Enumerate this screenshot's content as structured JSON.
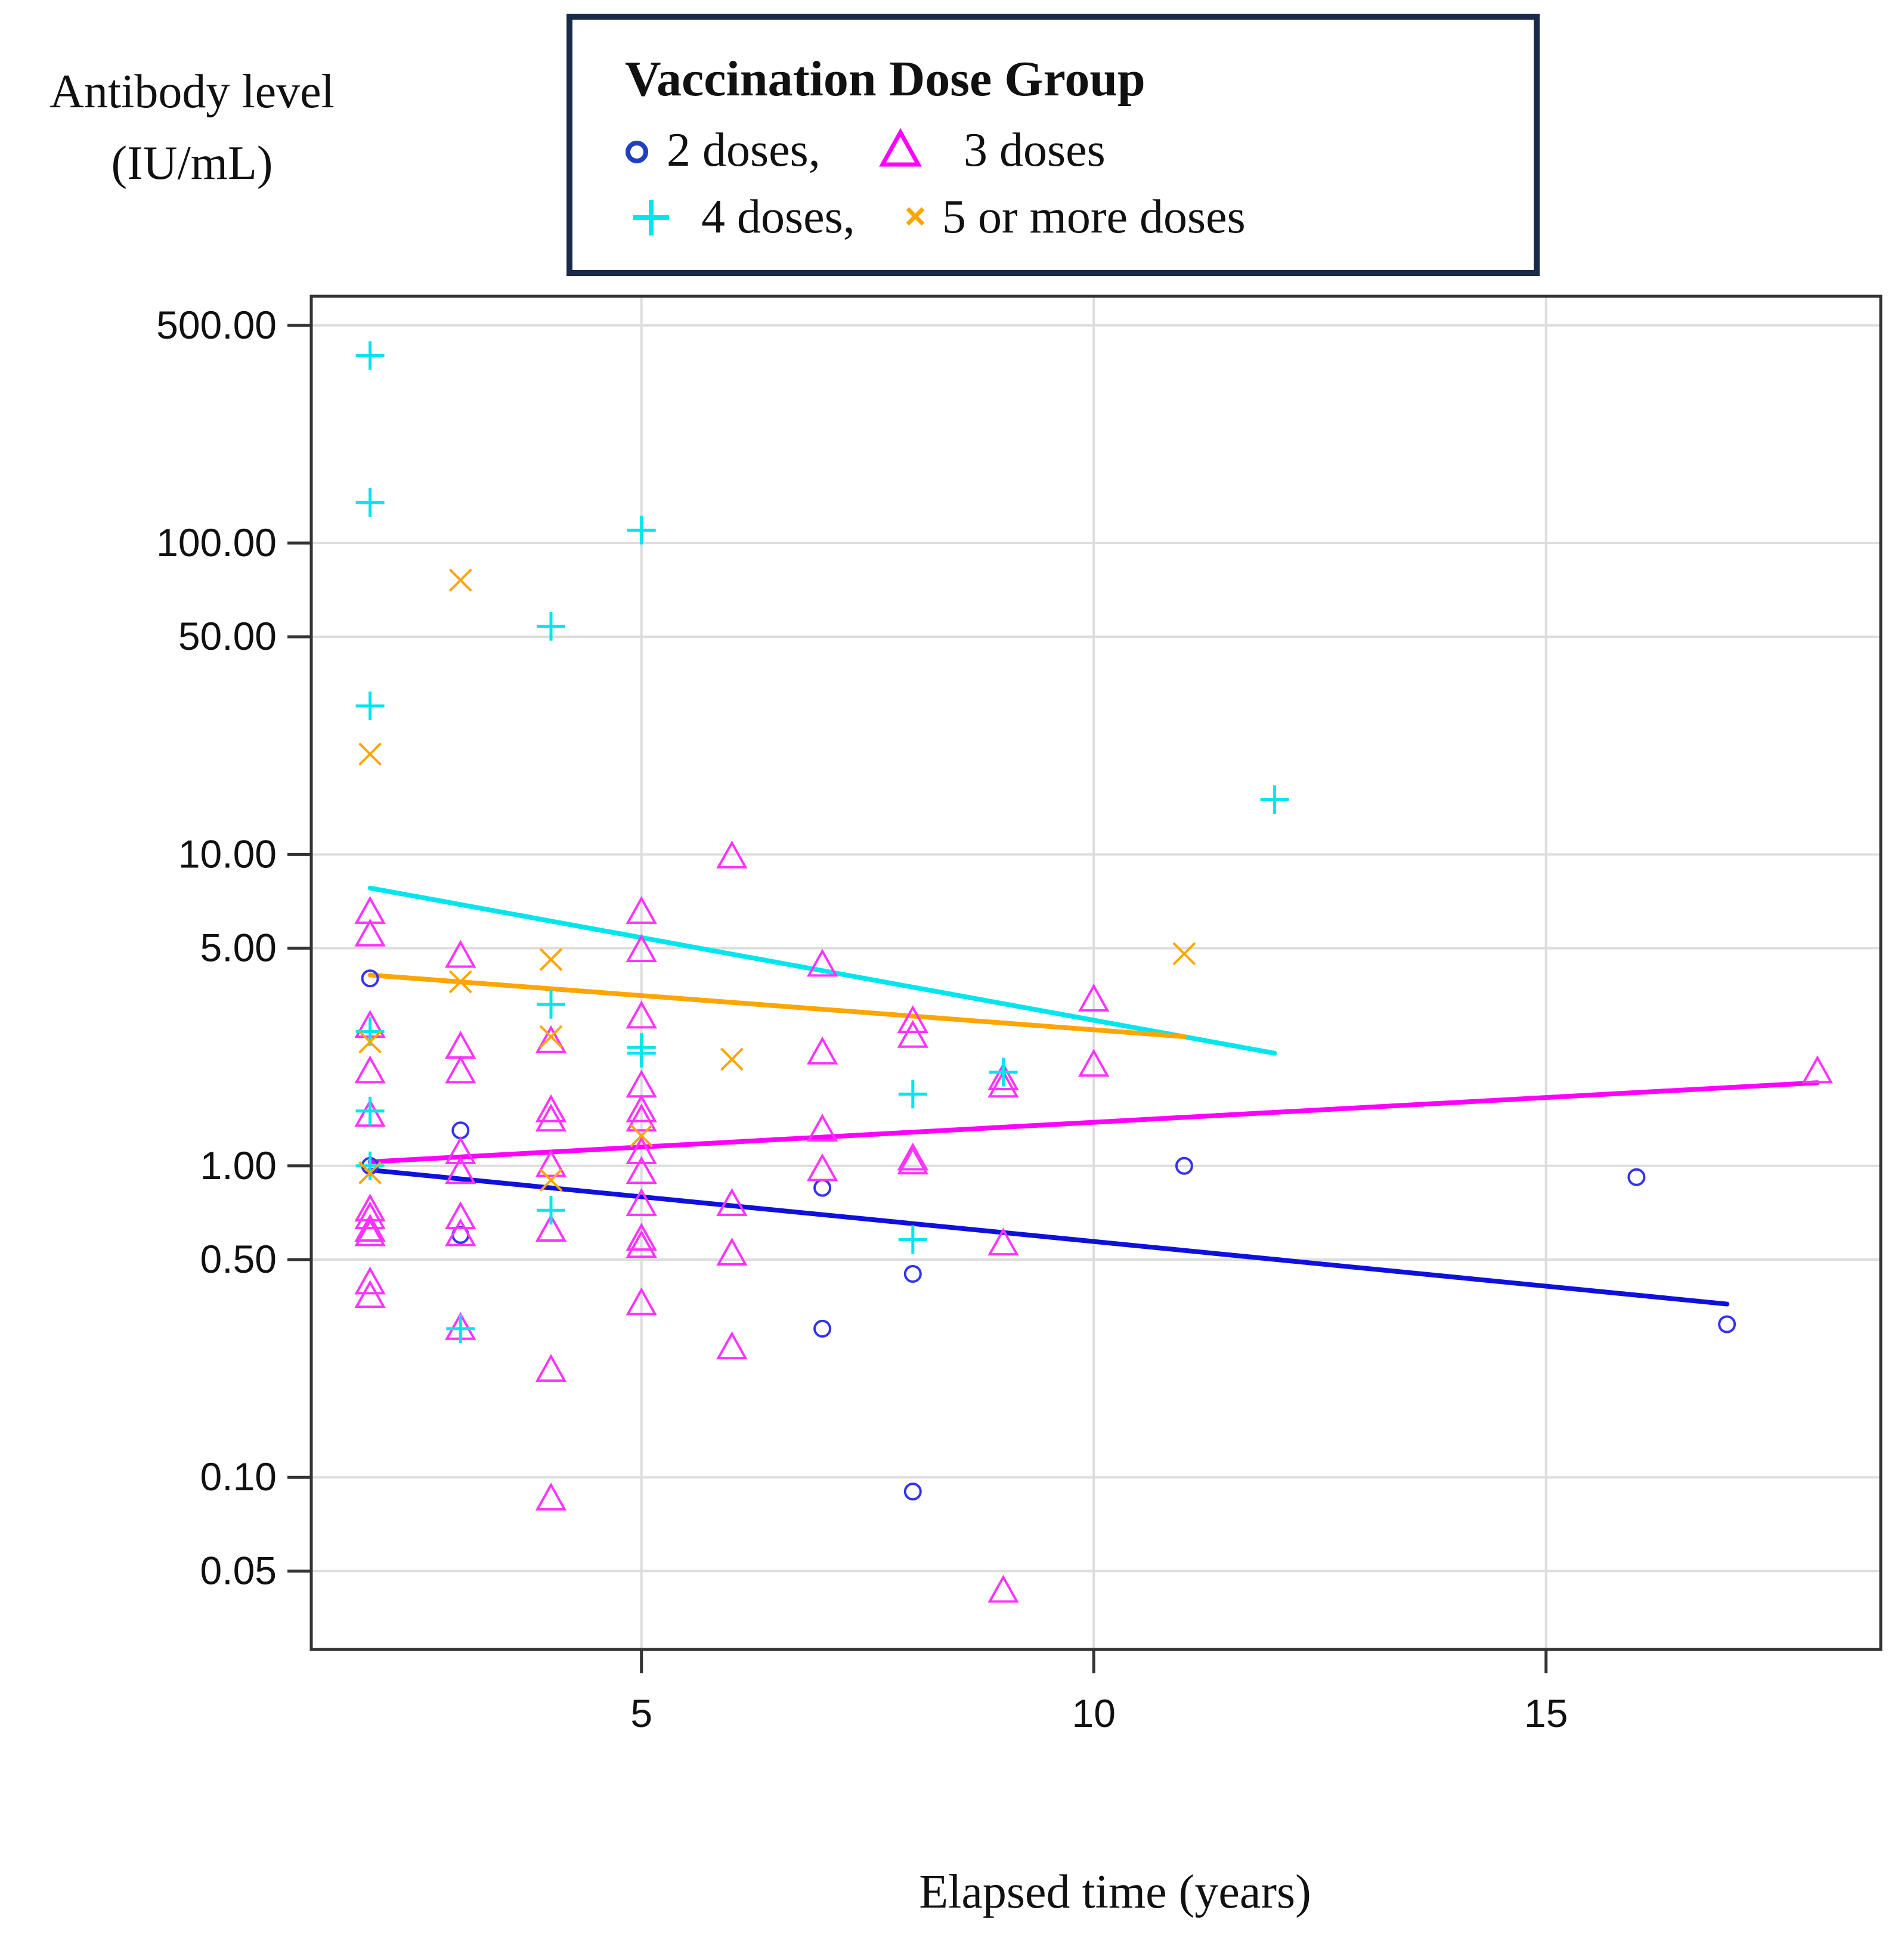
{
  "chart_data": {
    "type": "scatter",
    "title": "",
    "ylabel_line1": "Antibody level",
    "ylabel_line2": "(IU/mL)",
    "xlabel": "Elapsed time (years)",
    "y_scale": "log",
    "xlim": [
      1.35,
      18.7
    ],
    "ylim": [
      0.028,
      620
    ],
    "x_ticks": [
      5,
      10,
      15
    ],
    "x_tick_labels": [
      "5",
      "10",
      "15"
    ],
    "y_ticks": [
      500,
      100,
      50,
      10,
      5,
      1,
      0.5,
      0.1,
      0.05
    ],
    "y_tick_labels": [
      "500.00",
      "100.00",
      "50.00",
      "10.00",
      "5.00",
      "1.00",
      "0.50",
      "0.10",
      "0.05"
    ],
    "grid": true,
    "legend": {
      "title": "Vaccination Dose Group",
      "placement": "top-center",
      "entries": [
        {
          "label": "2 doses,",
          "marker": "circle",
          "color": "#1f3fbf"
        },
        {
          "label": "3 doses",
          "marker": "triangle",
          "color": "#ff00ff"
        },
        {
          "label": "4 doses,",
          "marker": "plus",
          "color": "#00e5ee"
        },
        {
          "label": "5 or more doses",
          "marker": "x",
          "color": "#ffa500"
        }
      ]
    },
    "series": [
      {
        "name": "2 doses",
        "marker": "circle",
        "color": "#3333ee",
        "line_color": "#1010dd",
        "x": [
          2,
          2,
          3,
          3,
          7,
          7,
          8,
          8,
          11,
          16,
          17
        ],
        "y": [
          4.0,
          1.0,
          1.3,
          0.6,
          0.85,
          0.3,
          0.45,
          0.09,
          1.0,
          0.92,
          0.31
        ],
        "trend": {
          "x": [
            2,
            17
          ],
          "y": [
            0.97,
            0.36
          ]
        }
      },
      {
        "name": "3 doses",
        "marker": "triangle",
        "color": "#ff33ff",
        "line_color": "#ff00ff",
        "x": [
          2,
          2,
          2,
          2,
          2,
          2,
          2,
          2,
          2,
          2,
          2,
          3,
          3,
          3,
          3,
          3,
          3,
          3,
          3,
          4,
          4,
          4,
          4,
          4,
          4,
          4,
          5,
          5,
          5,
          5,
          5,
          5,
          5,
          5,
          5,
          5,
          5,
          5,
          6,
          6,
          6,
          6,
          7,
          7,
          7,
          7,
          8,
          8,
          8,
          8,
          9,
          9,
          9,
          9,
          10,
          10,
          18
        ],
        "y": [
          6.5,
          5.5,
          2.8,
          2.0,
          1.45,
          0.72,
          0.68,
          0.62,
          0.6,
          0.42,
          0.38,
          4.7,
          2.4,
          2.0,
          1.1,
          0.95,
          0.68,
          0.6,
          0.3,
          2.5,
          1.5,
          1.4,
          1.0,
          0.62,
          0.22,
          0.085,
          6.5,
          3.0,
          1.8,
          1.5,
          1.4,
          1.1,
          0.95,
          0.75,
          0.58,
          0.55,
          0.36,
          4.9,
          0.75,
          0.52,
          0.26,
          9.8,
          2.3,
          1.3,
          0.97,
          4.4,
          2.6,
          1.05,
          1.02,
          2.9,
          1.9,
          1.8,
          0.56,
          0.043,
          3.4,
          2.1,
          2.0
        ],
        "trend": {
          "x": [
            2,
            18
          ],
          "y": [
            1.03,
            1.85
          ]
        }
      },
      {
        "name": "4 doses",
        "marker": "plus",
        "color": "#00e5ee",
        "line_color": "#00e5ee",
        "x": [
          2,
          2,
          2,
          2,
          2,
          2,
          3,
          4,
          4,
          4,
          5,
          5,
          5,
          8,
          8,
          9,
          12
        ],
        "y": [
          400,
          135,
          30,
          2.7,
          1.5,
          1.0,
          0.3,
          54,
          3.3,
          0.72,
          110,
          2.4,
          2.3,
          1.7,
          0.58,
          2.0,
          15
        ],
        "trend": {
          "x": [
            2,
            12
          ],
          "y": [
            7.8,
            2.3
          ]
        }
      },
      {
        "name": "5 or more doses",
        "marker": "x",
        "color": "#ffa500",
        "line_color": "#ffa500",
        "x": [
          2,
          2,
          2,
          3,
          3,
          4,
          4,
          4,
          5,
          6,
          11
        ],
        "y": [
          21,
          2.5,
          0.95,
          76,
          3.9,
          4.6,
          2.6,
          0.9,
          1.25,
          2.2,
          4.8
        ],
        "trend": {
          "x": [
            2,
            11
          ],
          "y": [
            4.1,
            2.6
          ]
        }
      }
    ]
  }
}
